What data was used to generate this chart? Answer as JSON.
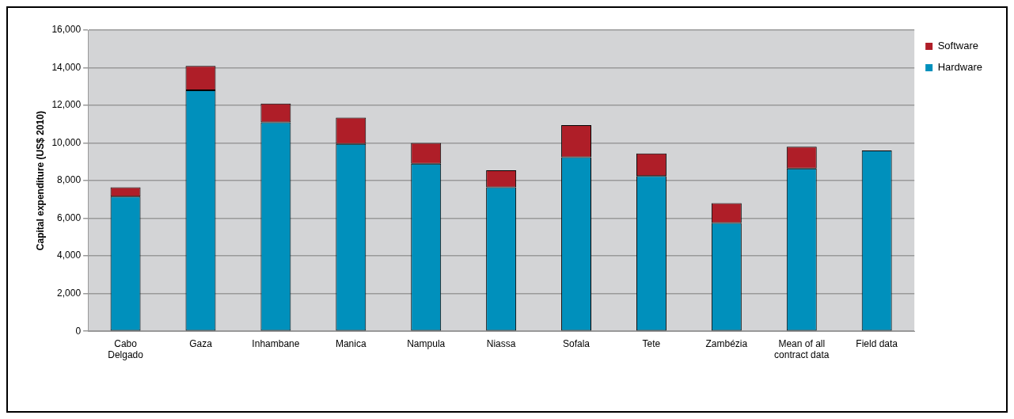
{
  "chart_data": {
    "type": "bar",
    "ylabel": "Capital expenditure (US$ 2010)",
    "categories": [
      "Cabo Delgado",
      "Gaza",
      "Inhambane",
      "Manica",
      "Nampula",
      "Niassa",
      "Sofala",
      "Tete",
      "Zambézia",
      "Mean of all contract data",
      "Field data"
    ],
    "series": [
      {
        "name": "Hardware",
        "color": "#0090bc",
        "values": [
          7150,
          12800,
          11100,
          9950,
          8900,
          7650,
          9250,
          8250,
          5750,
          8650,
          9600
        ]
      },
      {
        "name": "Software",
        "color": "#af1e28",
        "values": [
          500,
          1300,
          1000,
          1400,
          1100,
          900,
          1700,
          1200,
          1050,
          1150,
          null
        ]
      }
    ],
    "stacked": true,
    "ylim": [
      0,
      16000
    ],
    "yticks": [
      0,
      {
        "value": 2000,
        "label": "2,000"
      },
      {
        "value": 4000,
        "label": "4,000"
      },
      {
        "value": 6000,
        "label": "6,000"
      },
      {
        "value": 8000,
        "label": "8,000"
      },
      {
        "value": 10000,
        "label": "10,000"
      },
      {
        "value": 12000,
        "label": "12,000"
      },
      {
        "value": 14000,
        "label": "14,000"
      },
      {
        "value": 16000,
        "label": "16,000"
      }
    ],
    "grid": "y",
    "legend": "top right"
  }
}
